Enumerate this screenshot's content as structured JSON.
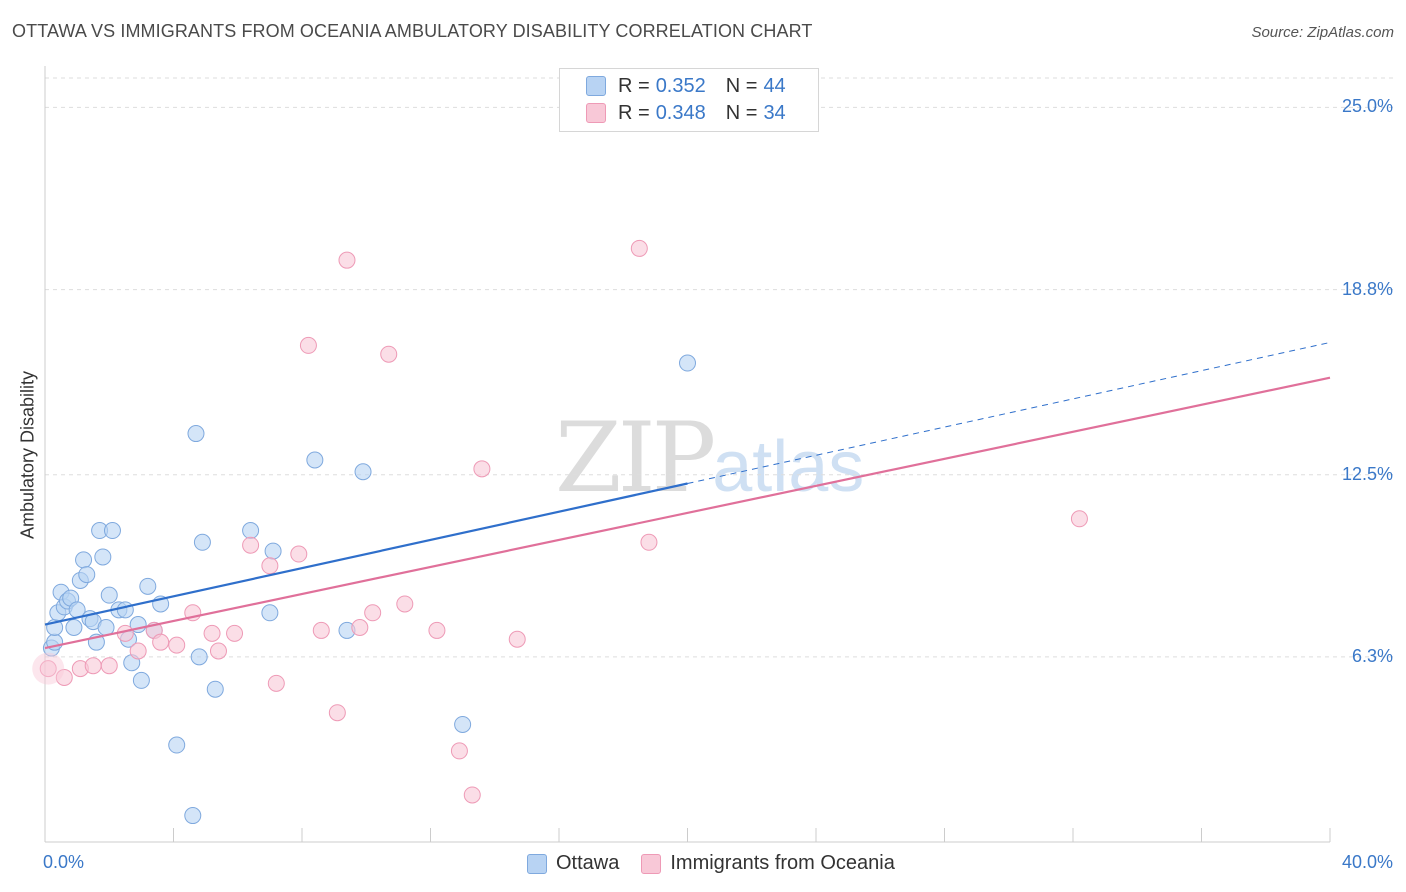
{
  "header": {
    "title": "OTTAWA VS IMMIGRANTS FROM OCEANIA AMBULATORY DISABILITY CORRELATION CHART",
    "source": "Source: ZipAtlas.com"
  },
  "legend": {
    "rows": [
      {
        "r_label": "R =",
        "r_value": "0.352",
        "n_label": "N =",
        "n_value": "44"
      },
      {
        "r_label": "R =",
        "r_value": "0.348",
        "n_label": "N =",
        "n_value": "34"
      }
    ]
  },
  "watermark": {
    "zip": "ZIP",
    "atlas": "atlas"
  },
  "colors": {
    "ottawa_fill": "#b8d3f3",
    "ottawa_stroke": "#7fa9de",
    "ottawa_line": "#2f6fcb",
    "oceania_fill": "#f8c8d7",
    "oceania_stroke": "#ee9ab6",
    "oceania_line": "#e0709a",
    "tick_text": "#3a78c8",
    "grid": "#dddddd"
  },
  "chart_data": {
    "type": "scatter",
    "title": "OTTAWA VS IMMIGRANTS FROM OCEANIA AMBULATORY DISABILITY CORRELATION CHART",
    "xlabel": "",
    "ylabel": "Ambulatory Disability",
    "xlim": [
      0,
      40
    ],
    "ylim": [
      0,
      26
    ],
    "x_tick_labels": [
      "0.0%",
      "40.0%"
    ],
    "y_ticks": [
      6.3,
      12.5,
      18.8,
      25.0
    ],
    "y_tick_labels": [
      "6.3%",
      "12.5%",
      "18.8%",
      "25.0%"
    ],
    "grid": true,
    "legend_position": "top-center",
    "series": [
      {
        "name": "Ottawa",
        "r": 0.352,
        "n": 44,
        "trend": {
          "x0": 0.0,
          "y0": 7.4,
          "x1": 20.0,
          "y1": 12.2,
          "dashed_to_x": 40.0,
          "dashed_to_y": 17.0
        },
        "points": [
          [
            0.2,
            6.6
          ],
          [
            0.3,
            6.8
          ],
          [
            0.3,
            7.3
          ],
          [
            0.4,
            7.8
          ],
          [
            0.5,
            8.5
          ],
          [
            0.6,
            8.0
          ],
          [
            0.7,
            8.2
          ],
          [
            0.8,
            8.3
          ],
          [
            0.9,
            7.3
          ],
          [
            1.0,
            7.9
          ],
          [
            1.1,
            8.9
          ],
          [
            1.2,
            9.6
          ],
          [
            1.3,
            9.1
          ],
          [
            1.4,
            7.6
          ],
          [
            1.5,
            7.5
          ],
          [
            1.6,
            6.8
          ],
          [
            1.7,
            10.6
          ],
          [
            1.8,
            9.7
          ],
          [
            1.9,
            7.3
          ],
          [
            2.0,
            8.4
          ],
          [
            2.1,
            10.6
          ],
          [
            2.3,
            7.9
          ],
          [
            2.5,
            7.9
          ],
          [
            2.6,
            6.9
          ],
          [
            2.7,
            6.1
          ],
          [
            2.9,
            7.4
          ],
          [
            3.0,
            5.5
          ],
          [
            3.2,
            8.7
          ],
          [
            3.4,
            7.2
          ],
          [
            3.6,
            8.1
          ],
          [
            4.1,
            3.3
          ],
          [
            4.6,
            0.9
          ],
          [
            4.7,
            13.9
          ],
          [
            4.8,
            6.3
          ],
          [
            4.9,
            10.2
          ],
          [
            5.3,
            5.2
          ],
          [
            6.4,
            10.6
          ],
          [
            7.0,
            7.8
          ],
          [
            7.1,
            9.9
          ],
          [
            8.4,
            13.0
          ],
          [
            9.4,
            7.2
          ],
          [
            9.9,
            12.6
          ],
          [
            13.0,
            4.0
          ],
          [
            20.0,
            16.3
          ]
        ]
      },
      {
        "name": "Immigrants from Oceania",
        "r": 0.348,
        "n": 34,
        "trend": {
          "x0": 0.0,
          "y0": 6.6,
          "x1": 40.0,
          "y1": 15.8
        },
        "points": [
          [
            0.1,
            5.9
          ],
          [
            0.6,
            5.6
          ],
          [
            1.1,
            5.9
          ],
          [
            1.5,
            6.0
          ],
          [
            2.0,
            6.0
          ],
          [
            2.5,
            7.1
          ],
          [
            2.9,
            6.5
          ],
          [
            3.4,
            7.2
          ],
          [
            3.6,
            6.8
          ],
          [
            4.1,
            6.7
          ],
          [
            4.6,
            7.8
          ],
          [
            5.2,
            7.1
          ],
          [
            5.4,
            6.5
          ],
          [
            5.9,
            7.1
          ],
          [
            6.4,
            10.1
          ],
          [
            7.0,
            9.4
          ],
          [
            7.2,
            5.4
          ],
          [
            7.9,
            9.8
          ],
          [
            8.2,
            16.9
          ],
          [
            8.6,
            7.2
          ],
          [
            9.1,
            4.4
          ],
          [
            9.4,
            19.8
          ],
          [
            9.8,
            7.3
          ],
          [
            10.2,
            7.8
          ],
          [
            10.7,
            16.6
          ],
          [
            11.2,
            8.1
          ],
          [
            12.2,
            7.2
          ],
          [
            12.9,
            3.1
          ],
          [
            13.3,
            1.6
          ],
          [
            13.6,
            12.7
          ],
          [
            14.7,
            6.9
          ],
          [
            18.8,
            10.2
          ],
          [
            18.5,
            20.2
          ],
          [
            32.2,
            11.0
          ]
        ]
      }
    ]
  }
}
